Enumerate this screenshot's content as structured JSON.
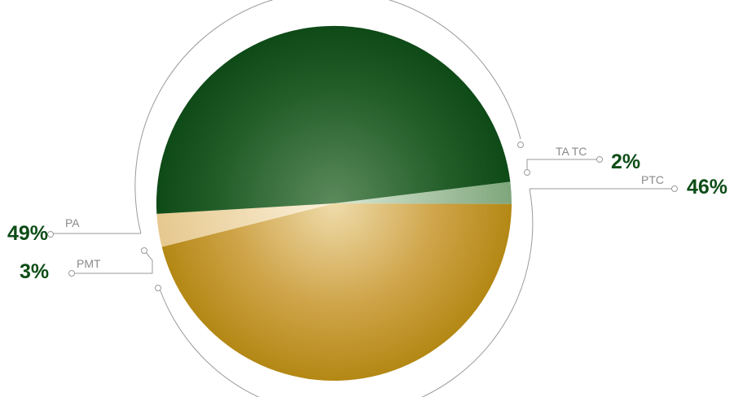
{
  "chart_data": {
    "type": "pie",
    "title": "",
    "slices": [
      {
        "label": "TA TC",
        "value": 2,
        "value_label": "2%",
        "color": "#9ec09a"
      },
      {
        "label": "PTC",
        "value": 46,
        "value_label": "46%",
        "color": "#b8860b"
      },
      {
        "label": "PMT",
        "value": 3,
        "value_label": "3%",
        "color": "#f1dfb4"
      },
      {
        "label": "PA",
        "value": 49,
        "value_label": "49%",
        "color": "#0e4d17"
      }
    ]
  },
  "colors": {
    "label_text": "#8a8a8a",
    "percent_text": "#0e4d17",
    "leader_line": "#9a9a9a"
  }
}
